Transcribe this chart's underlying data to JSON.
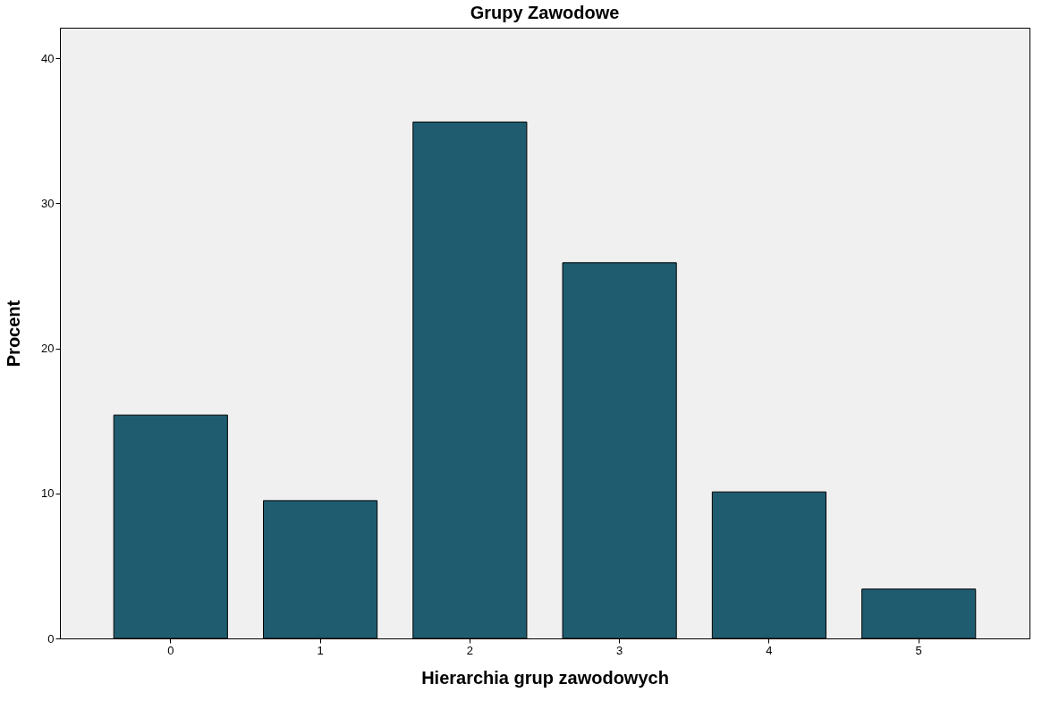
{
  "chart_data": {
    "type": "bar",
    "title": "Grupy Zawodowe",
    "xlabel": "Hierarchia grup zawodowych",
    "ylabel": "Procent",
    "categories": [
      "0",
      "1",
      "2",
      "3",
      "4",
      "5"
    ],
    "values": [
      15.4,
      9.5,
      35.6,
      25.9,
      10.1,
      3.4
    ],
    "color": "#1f5c70",
    "ylim": [
      0,
      42.1
    ],
    "yticks": [
      0,
      10,
      20,
      30,
      40
    ],
    "grid": false
  }
}
